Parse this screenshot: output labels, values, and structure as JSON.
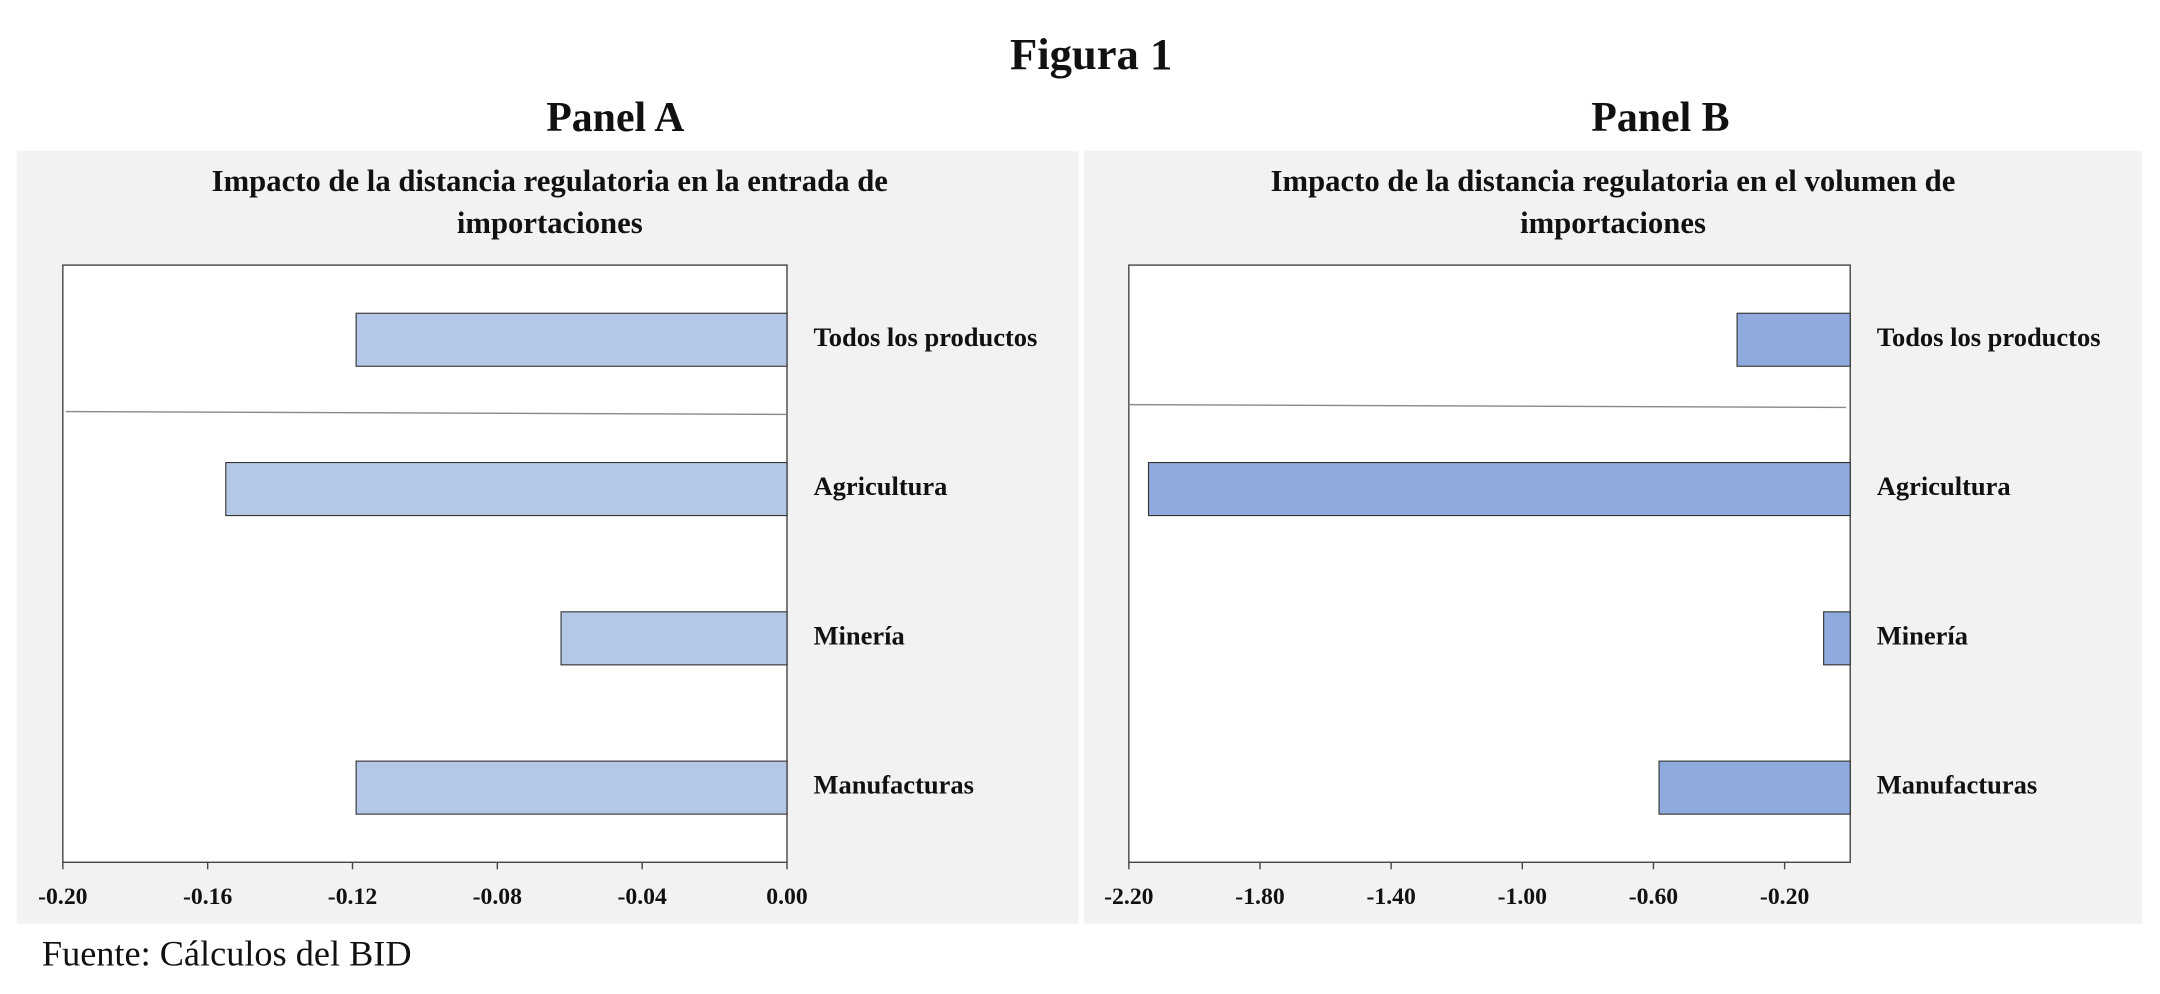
{
  "title": "Figura 1",
  "source": "Fuente: Cálculos del BID",
  "chart_data": [
    {
      "type": "bar",
      "orientation": "horizontal",
      "panel": "Panel A",
      "title": [
        "Impacto de la distancia regulatoria en la entrada de",
        "importaciones"
      ],
      "categories": [
        "Todos los productos",
        "Agricultura",
        "Minería",
        "Manufacturas"
      ],
      "values": [
        -0.119,
        -0.155,
        -0.0624,
        -0.119
      ],
      "color": "#b4c7e7",
      "xlim": [
        -0.2,
        0
      ],
      "xticks": [
        {
          "value": -0.2,
          "label": "-0.20"
        },
        {
          "value": -0.16,
          "label": "-0.16"
        },
        {
          "value": -0.12,
          "label": "-0.12"
        },
        {
          "value": -0.08,
          "label": "-0.08"
        },
        {
          "value": -0.04,
          "label": "-0.04"
        },
        {
          "value": 0,
          "label": "0.00"
        }
      ]
    },
    {
      "type": "bar",
      "orientation": "horizontal",
      "panel": "Panel B",
      "title": [
        "Impacto de la distancia regulatoria en el volumen de",
        "importaciones"
      ],
      "categories": [
        "Todos los productos",
        "Agricultura",
        "Minería",
        "Manufacturas"
      ],
      "values": [
        -0.345,
        -2.14,
        -0.081,
        -0.583
      ],
      "color": "#8faadc",
      "xlim": [
        -2.2,
        0
      ],
      "xticks": [
        {
          "value": -2.2,
          "label": "-2.20"
        },
        {
          "value": -1.8,
          "label": "-1.80"
        },
        {
          "value": -1.4,
          "label": "-1.40"
        },
        {
          "value": -1.0,
          "label": "-1.00"
        },
        {
          "value": -0.6,
          "label": "-0.60"
        },
        {
          "value": -0.2,
          "label": "-0.20"
        }
      ]
    }
  ]
}
